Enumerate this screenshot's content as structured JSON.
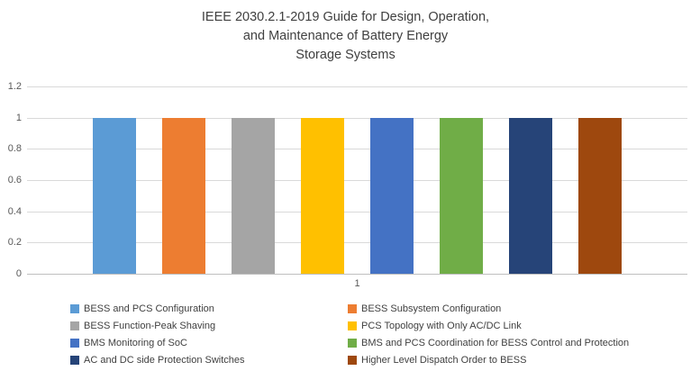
{
  "chart_data": {
    "type": "bar",
    "title": "IEEE 2030.2.1-2019 Guide for Design, Operation, and Maintenance of Battery Energy Storage Systems",
    "title_lines": [
      "IEEE 2030.2.1-2019 Guide for Design, Operation,",
      "and Maintenance of Battery Energy",
      "Storage Systems"
    ],
    "categories": [
      "1"
    ],
    "x_category": "1",
    "xlabel": "",
    "ylabel": "",
    "ylim": [
      0,
      1.2
    ],
    "ymax": 1.2,
    "yticks": [
      "0",
      "0.2",
      "0.4",
      "0.6",
      "0.8",
      "1",
      "1.2"
    ],
    "ytick_values": [
      0,
      0.2,
      0.4,
      0.6,
      0.8,
      1,
      1.2
    ],
    "grid": true,
    "legend_position": "bottom",
    "series": [
      {
        "name": "BESS and PCS Configuration",
        "value": 1,
        "color": "#5B9BD5"
      },
      {
        "name": "BESS Subsystem Configuration",
        "value": 1,
        "color": "#ED7D31"
      },
      {
        "name": "BESS Function-Peak Shaving",
        "value": 1,
        "color": "#A5A5A5"
      },
      {
        "name": "PCS Topology with Only AC/DC Link",
        "value": 1,
        "color": "#FFC000"
      },
      {
        "name": "BMS Monitoring of SoC",
        "value": 1,
        "color": "#4472C4"
      },
      {
        "name": "BMS and PCS Coordination for BESS Control and Protection",
        "value": 1,
        "color": "#70AD47"
      },
      {
        "name": "AC and DC side Protection Switches",
        "value": 1,
        "color": "#264478"
      },
      {
        "name": "Higher Level Dispatch Order to BESS",
        "value": 1,
        "color": "#9E480E"
      }
    ]
  }
}
